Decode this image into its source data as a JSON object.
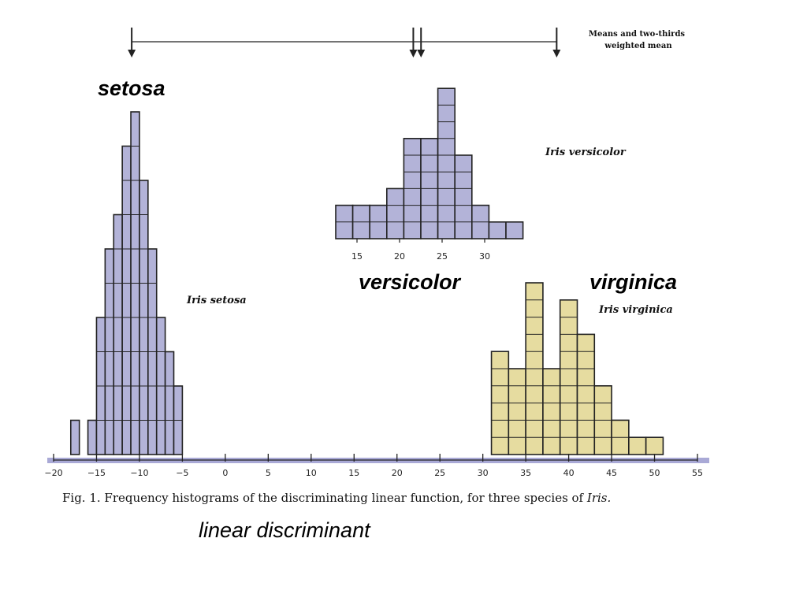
{
  "colors": {
    "setosa": "#7b7bb8",
    "setosa_fill": "#b3b3d8",
    "versicolor": "#7b7bb8",
    "versicolor_fill": "#b3b3d8",
    "virginica": "#b3a535",
    "virginica_fill": "#e6dca0",
    "axis_band": "#a9a9d6"
  },
  "chart_data": {
    "type": "bar",
    "title": "Fig. 1. Frequency histograms of the discriminating linear function, for three species of Iris.",
    "caption_prefix": "Fig. 1.  Frequency histograms of the discriminating linear function, for three species of ",
    "caption_italic": "Iris.",
    "xlabel": "linear discriminant",
    "xlim": [
      -20,
      55
    ],
    "x_ticks": [
      -20,
      -15,
      -10,
      -5,
      0,
      5,
      10,
      15,
      20,
      25,
      30,
      35,
      40,
      45,
      50,
      55
    ],
    "x_tick_labels": [
      "−20",
      "−15",
      "−10",
      "−5",
      "0",
      "5",
      "10",
      "15",
      "20",
      "25",
      "30",
      "35",
      "40",
      "45",
      "50",
      "55"
    ],
    "bin_width": 1,
    "means_legend": [
      "Means and two-thirds",
      "weighted mean"
    ],
    "means": [
      -10.9,
      21.9,
      22.8,
      38.6
    ],
    "series": [
      {
        "name": "setosa",
        "title": "setosa",
        "label": "Iris setosa",
        "bins": [
          {
            "x": -18,
            "count": 1
          },
          {
            "x": -16,
            "count": 1
          },
          {
            "x": -15,
            "count": 4
          },
          {
            "x": -14,
            "count": 6
          },
          {
            "x": -13,
            "count": 7
          },
          {
            "x": -12,
            "count": 9
          },
          {
            "x": -11,
            "count": 10
          },
          {
            "x": -10,
            "count": 8
          },
          {
            "x": -9,
            "count": 6
          },
          {
            "x": -8,
            "count": 4
          },
          {
            "x": -7,
            "count": 3
          },
          {
            "x": -6,
            "count": 2
          }
        ]
      },
      {
        "name": "versicolor",
        "title": "versicolor",
        "label": "Iris versicolor",
        "tick_labels": [
          "15",
          "20",
          "25",
          "30"
        ],
        "tick_values": [
          15,
          20,
          25,
          30
        ],
        "bins": [
          {
            "x": 12.5,
            "count": 2
          },
          {
            "x": 14.5,
            "count": 2
          },
          {
            "x": 16.5,
            "count": 2
          },
          {
            "x": 18.5,
            "count": 3
          },
          {
            "x": 20.5,
            "count": 6
          },
          {
            "x": 22.5,
            "count": 6
          },
          {
            "x": 24.5,
            "count": 9
          },
          {
            "x": 26.5,
            "count": 5
          },
          {
            "x": 28.5,
            "count": 2
          },
          {
            "x": 30.5,
            "count": 1
          },
          {
            "x": 32.5,
            "count": 1
          }
        ]
      },
      {
        "name": "virginica",
        "title": "virginica",
        "label": "Iris virginica",
        "bins": [
          {
            "x": 31,
            "count": 6
          },
          {
            "x": 33,
            "count": 5
          },
          {
            "x": 35,
            "count": 10
          },
          {
            "x": 37,
            "count": 5
          },
          {
            "x": 39,
            "count": 9
          },
          {
            "x": 41,
            "count": 7
          },
          {
            "x": 43,
            "count": 4
          },
          {
            "x": 45,
            "count": 2
          },
          {
            "x": 47,
            "count": 1
          },
          {
            "x": 49,
            "count": 1
          }
        ]
      }
    ]
  }
}
